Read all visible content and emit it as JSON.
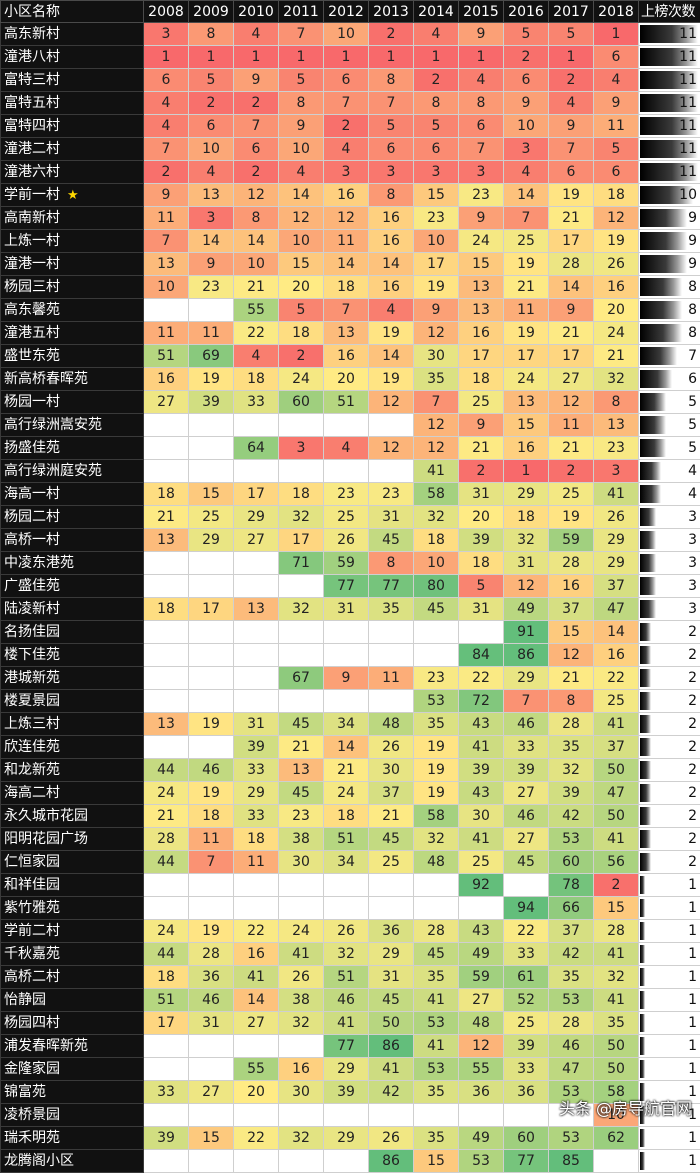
{
  "chart_data": {
    "type": "table",
    "header": {
      "name_col": "小区名称",
      "years": [
        "2008",
        "2009",
        "2010",
        "2011",
        "2012",
        "2013",
        "2014",
        "2015",
        "2016",
        "2017",
        "2018"
      ],
      "count_col": "上榜次数"
    },
    "rows": [
      {
        "name": "高东新村",
        "star": false,
        "ranks": [
          3,
          8,
          4,
          7,
          10,
          2,
          4,
          9,
          5,
          5,
          1
        ],
        "count": 11
      },
      {
        "name": "潼港八村",
        "star": false,
        "ranks": [
          1,
          1,
          1,
          1,
          1,
          1,
          1,
          1,
          2,
          1,
          6
        ],
        "count": 11
      },
      {
        "name": "富特三村",
        "star": false,
        "ranks": [
          6,
          5,
          9,
          5,
          6,
          8,
          2,
          4,
          6,
          2,
          4
        ],
        "count": 11
      },
      {
        "name": "富特五村",
        "star": false,
        "ranks": [
          4,
          2,
          2,
          8,
          7,
          7,
          8,
          8,
          9,
          4,
          9
        ],
        "count": 11
      },
      {
        "name": "富特四村",
        "star": false,
        "ranks": [
          4,
          6,
          7,
          9,
          2,
          5,
          5,
          6,
          10,
          9,
          11
        ],
        "count": 11
      },
      {
        "name": "潼港二村",
        "star": false,
        "ranks": [
          7,
          10,
          6,
          10,
          4,
          6,
          6,
          7,
          3,
          7,
          5
        ],
        "count": 11
      },
      {
        "name": "潼港六村",
        "star": false,
        "ranks": [
          2,
          4,
          2,
          4,
          3,
          3,
          3,
          3,
          4,
          6,
          6
        ],
        "count": 11
      },
      {
        "name": "学前一村",
        "star": true,
        "ranks": [
          9,
          13,
          12,
          14,
          16,
          8,
          15,
          23,
          14,
          19,
          18
        ],
        "count": 10
      },
      {
        "name": "高南新村",
        "star": false,
        "ranks": [
          11,
          3,
          8,
          12,
          12,
          16,
          23,
          9,
          7,
          21,
          12
        ],
        "count": 9
      },
      {
        "name": "上炼一村",
        "star": false,
        "ranks": [
          7,
          14,
          14,
          10,
          11,
          16,
          10,
          24,
          25,
          17,
          19
        ],
        "count": 9
      },
      {
        "name": "潼港一村",
        "star": false,
        "ranks": [
          13,
          9,
          10,
          15,
          14,
          14,
          17,
          15,
          19,
          28,
          26
        ],
        "count": 9
      },
      {
        "name": "杨园三村",
        "star": false,
        "ranks": [
          10,
          23,
          21,
          20,
          18,
          16,
          19,
          13,
          21,
          14,
          16
        ],
        "count": 8
      },
      {
        "name": "高东馨苑",
        "star": false,
        "ranks": [
          null,
          null,
          55,
          5,
          7,
          4,
          9,
          13,
          11,
          9,
          20
        ],
        "count": 8
      },
      {
        "name": "潼港五村",
        "star": false,
        "ranks": [
          11,
          11,
          22,
          18,
          13,
          19,
          12,
          16,
          19,
          21,
          24
        ],
        "count": 8
      },
      {
        "name": "盛世东苑",
        "star": false,
        "ranks": [
          51,
          69,
          4,
          2,
          16,
          14,
          30,
          17,
          17,
          17,
          21
        ],
        "count": 7
      },
      {
        "name": "新高桥春晖苑",
        "star": false,
        "ranks": [
          16,
          19,
          18,
          24,
          20,
          19,
          35,
          18,
          24,
          27,
          32
        ],
        "count": 6
      },
      {
        "name": "杨园一村",
        "star": false,
        "ranks": [
          27,
          39,
          33,
          60,
          51,
          12,
          7,
          25,
          13,
          12,
          8
        ],
        "count": 5
      },
      {
        "name": "高行绿洲嵩安苑",
        "star": false,
        "ranks": [
          null,
          null,
          null,
          null,
          null,
          null,
          12,
          9,
          15,
          11,
          13
        ],
        "count": 5
      },
      {
        "name": "扬盛佳苑",
        "star": false,
        "ranks": [
          null,
          null,
          64,
          3,
          4,
          12,
          12,
          21,
          16,
          21,
          23
        ],
        "count": 5
      },
      {
        "name": "高行绿洲庭安苑",
        "star": false,
        "ranks": [
          null,
          null,
          null,
          null,
          null,
          null,
          41,
          2,
          1,
          2,
          3
        ],
        "count": 4
      },
      {
        "name": "海高一村",
        "star": false,
        "ranks": [
          18,
          15,
          17,
          18,
          23,
          23,
          58,
          31,
          29,
          25,
          41
        ],
        "count": 4
      },
      {
        "name": "杨园二村",
        "star": false,
        "ranks": [
          21,
          25,
          29,
          32,
          25,
          31,
          32,
          20,
          18,
          19,
          26
        ],
        "count": 3
      },
      {
        "name": "高桥一村",
        "star": false,
        "ranks": [
          13,
          29,
          27,
          17,
          26,
          45,
          18,
          39,
          32,
          59,
          29
        ],
        "count": 3
      },
      {
        "name": "中凌东港苑",
        "star": false,
        "ranks": [
          null,
          null,
          null,
          71,
          59,
          8,
          10,
          18,
          31,
          28,
          29
        ],
        "count": 3
      },
      {
        "name": "广盛佳苑",
        "star": false,
        "ranks": [
          null,
          null,
          null,
          null,
          77,
          77,
          80,
          5,
          12,
          16,
          37
        ],
        "count": 3
      },
      {
        "name": "陆凌新村",
        "star": false,
        "ranks": [
          18,
          17,
          13,
          32,
          31,
          35,
          45,
          31,
          49,
          37,
          47
        ],
        "count": 3
      },
      {
        "name": "名扬佳园",
        "star": false,
        "ranks": [
          null,
          null,
          null,
          null,
          null,
          null,
          null,
          null,
          91,
          15,
          14
        ],
        "count": 2
      },
      {
        "name": "楼下佳苑",
        "star": false,
        "ranks": [
          null,
          null,
          null,
          null,
          null,
          null,
          null,
          84,
          86,
          12,
          16
        ],
        "count": 2
      },
      {
        "name": "港城新苑",
        "star": false,
        "ranks": [
          null,
          null,
          null,
          67,
          9,
          11,
          23,
          22,
          29,
          21,
          22
        ],
        "count": 2
      },
      {
        "name": "楼夏景园",
        "star": false,
        "ranks": [
          null,
          null,
          null,
          null,
          null,
          null,
          53,
          72,
          7,
          8,
          25
        ],
        "count": 2
      },
      {
        "name": "上炼三村",
        "star": false,
        "ranks": [
          13,
          19,
          31,
          45,
          34,
          48,
          35,
          43,
          46,
          28,
          41
        ],
        "count": 2
      },
      {
        "name": "欣连佳苑",
        "star": false,
        "ranks": [
          null,
          null,
          39,
          21,
          14,
          26,
          19,
          41,
          33,
          35,
          37
        ],
        "count": 2
      },
      {
        "name": "和龙新苑",
        "star": false,
        "ranks": [
          44,
          46,
          33,
          13,
          21,
          30,
          19,
          39,
          39,
          32,
          50
        ],
        "count": 2
      },
      {
        "name": "海高二村",
        "star": false,
        "ranks": [
          24,
          19,
          29,
          45,
          24,
          37,
          19,
          43,
          27,
          39,
          47
        ],
        "count": 2
      },
      {
        "name": "永久城市花园",
        "star": false,
        "ranks": [
          21,
          18,
          33,
          23,
          18,
          21,
          58,
          30,
          46,
          42,
          50
        ],
        "count": 2
      },
      {
        "name": "阳明花园广场",
        "star": false,
        "ranks": [
          28,
          11,
          18,
          38,
          51,
          45,
          32,
          41,
          27,
          53,
          41
        ],
        "count": 2
      },
      {
        "name": "仁恒家园",
        "star": false,
        "ranks": [
          44,
          7,
          11,
          30,
          34,
          25,
          48,
          25,
          45,
          60,
          56
        ],
        "count": 2
      },
      {
        "name": "和祥佳园",
        "star": false,
        "ranks": [
          null,
          null,
          null,
          null,
          null,
          null,
          null,
          92,
          null,
          78,
          2
        ],
        "count": 1
      },
      {
        "name": "紫竹雅苑",
        "star": false,
        "ranks": [
          null,
          null,
          null,
          null,
          null,
          null,
          null,
          null,
          94,
          66,
          15
        ],
        "count": 1
      },
      {
        "name": "学前二村",
        "star": false,
        "ranks": [
          24,
          19,
          22,
          24,
          26,
          36,
          28,
          43,
          22,
          37,
          28
        ],
        "count": 1
      },
      {
        "name": "千秋嘉苑",
        "star": false,
        "ranks": [
          44,
          28,
          16,
          41,
          32,
          29,
          45,
          49,
          33,
          42,
          41
        ],
        "count": 1
      },
      {
        "name": "高桥二村",
        "star": false,
        "ranks": [
          18,
          36,
          41,
          26,
          51,
          31,
          35,
          59,
          61,
          35,
          32
        ],
        "count": 1
      },
      {
        "name": "怡静园",
        "star": false,
        "ranks": [
          51,
          46,
          14,
          38,
          46,
          45,
          41,
          27,
          52,
          53,
          41
        ],
        "count": 1
      },
      {
        "name": "杨园四村",
        "star": false,
        "ranks": [
          17,
          31,
          27,
          32,
          41,
          50,
          53,
          48,
          25,
          28,
          35
        ],
        "count": 1
      },
      {
        "name": "浦发春晖新苑",
        "star": false,
        "ranks": [
          null,
          null,
          null,
          null,
          77,
          86,
          41,
          12,
          39,
          46,
          50
        ],
        "count": 1
      },
      {
        "name": "金隆家园",
        "star": false,
        "ranks": [
          null,
          null,
          55,
          16,
          29,
          41,
          53,
          55,
          33,
          47,
          50
        ],
        "count": 1
      },
      {
        "name": "锦富苑",
        "star": false,
        "ranks": [
          33,
          27,
          20,
          30,
          39,
          42,
          35,
          36,
          36,
          53,
          58
        ],
        "count": 1
      },
      {
        "name": "凌桥景园",
        "star": false,
        "ranks": [
          null,
          null,
          null,
          null,
          null,
          null,
          null,
          null,
          null,
          null,
          10
        ],
        "count": 1
      },
      {
        "name": "瑞禾明苑",
        "star": false,
        "ranks": [
          39,
          15,
          22,
          32,
          29,
          26,
          35,
          49,
          60,
          53,
          62
        ],
        "count": 1
      },
      {
        "name": "龙腾阁小区",
        "star": false,
        "ranks": [
          null,
          null,
          null,
          null,
          null,
          86,
          15,
          53,
          77,
          85,
          null
        ],
        "count": 1
      }
    ],
    "count_max": 11,
    "scale_colors": {
      "low_rank": "#f8696b",
      "mid_rank": "#ffeb84",
      "high_rank": "#63be7b"
    }
  },
  "watermark": "头条 @房导航官网"
}
